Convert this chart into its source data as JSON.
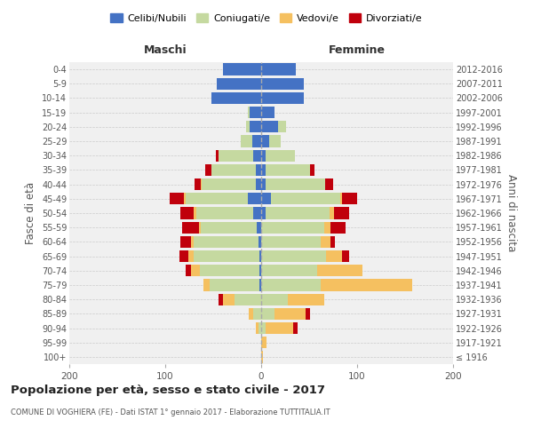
{
  "age_groups": [
    "100+",
    "95-99",
    "90-94",
    "85-89",
    "80-84",
    "75-79",
    "70-74",
    "65-69",
    "60-64",
    "55-59",
    "50-54",
    "45-49",
    "40-44",
    "35-39",
    "30-34",
    "25-29",
    "20-24",
    "15-19",
    "10-14",
    "5-9",
    "0-4"
  ],
  "birth_years": [
    "≤ 1916",
    "1917-1921",
    "1922-1926",
    "1927-1931",
    "1932-1936",
    "1937-1941",
    "1942-1946",
    "1947-1951",
    "1952-1956",
    "1957-1961",
    "1962-1966",
    "1967-1971",
    "1972-1976",
    "1977-1981",
    "1982-1986",
    "1987-1991",
    "1992-1996",
    "1997-2001",
    "2002-2006",
    "2007-2011",
    "2012-2016"
  ],
  "male": {
    "celibi": [
      0,
      0,
      0,
      0,
      0,
      2,
      2,
      2,
      3,
      5,
      8,
      14,
      6,
      6,
      8,
      9,
      12,
      12,
      52,
      46,
      40
    ],
    "coniugati": [
      0,
      0,
      3,
      8,
      28,
      52,
      62,
      68,
      67,
      58,
      60,
      65,
      56,
      46,
      36,
      12,
      4,
      2,
      0,
      0,
      0
    ],
    "vedovi": [
      0,
      0,
      3,
      5,
      12,
      6,
      9,
      6,
      3,
      2,
      2,
      2,
      1,
      0,
      0,
      0,
      0,
      0,
      0,
      0,
      0
    ],
    "divorziati": [
      0,
      0,
      0,
      0,
      4,
      0,
      6,
      9,
      11,
      17,
      14,
      14,
      6,
      6,
      3,
      0,
      0,
      0,
      0,
      0,
      0
    ]
  },
  "female": {
    "nubili": [
      0,
      0,
      0,
      0,
      0,
      0,
      0,
      0,
      0,
      0,
      5,
      10,
      5,
      5,
      5,
      8,
      18,
      14,
      44,
      44,
      36
    ],
    "coniugate": [
      0,
      0,
      5,
      14,
      28,
      62,
      58,
      68,
      62,
      66,
      66,
      72,
      62,
      46,
      30,
      12,
      8,
      0,
      0,
      0,
      0
    ],
    "vedove": [
      2,
      6,
      28,
      32,
      38,
      95,
      48,
      16,
      10,
      6,
      5,
      2,
      0,
      0,
      0,
      0,
      0,
      0,
      0,
      0,
      0
    ],
    "divorziate": [
      0,
      0,
      5,
      5,
      0,
      0,
      0,
      8,
      5,
      16,
      16,
      16,
      8,
      5,
      0,
      0,
      0,
      0,
      0,
      0,
      0
    ]
  },
  "colors": {
    "celibi": "#4472C4",
    "coniugati": "#C5D9A0",
    "vedovi": "#F5C060",
    "divorziati": "#C0000C"
  },
  "title": "Popolazione per età, sesso e stato civile - 2017",
  "subtitle": "COMUNE DI VOGHIERA (FE) - Dati ISTAT 1° gennaio 2017 - Elaborazione TUTTITALIA.IT",
  "xlabel_left": "Maschi",
  "xlabel_right": "Femmine",
  "ylabel_left": "Fasce di età",
  "ylabel_right": "Anni di nascita",
  "xlim": 200,
  "background_color": "#f0f0f0",
  "legend_labels": [
    "Celibi/Nubili",
    "Coniugati/e",
    "Vedovi/e",
    "Divorziati/e"
  ]
}
